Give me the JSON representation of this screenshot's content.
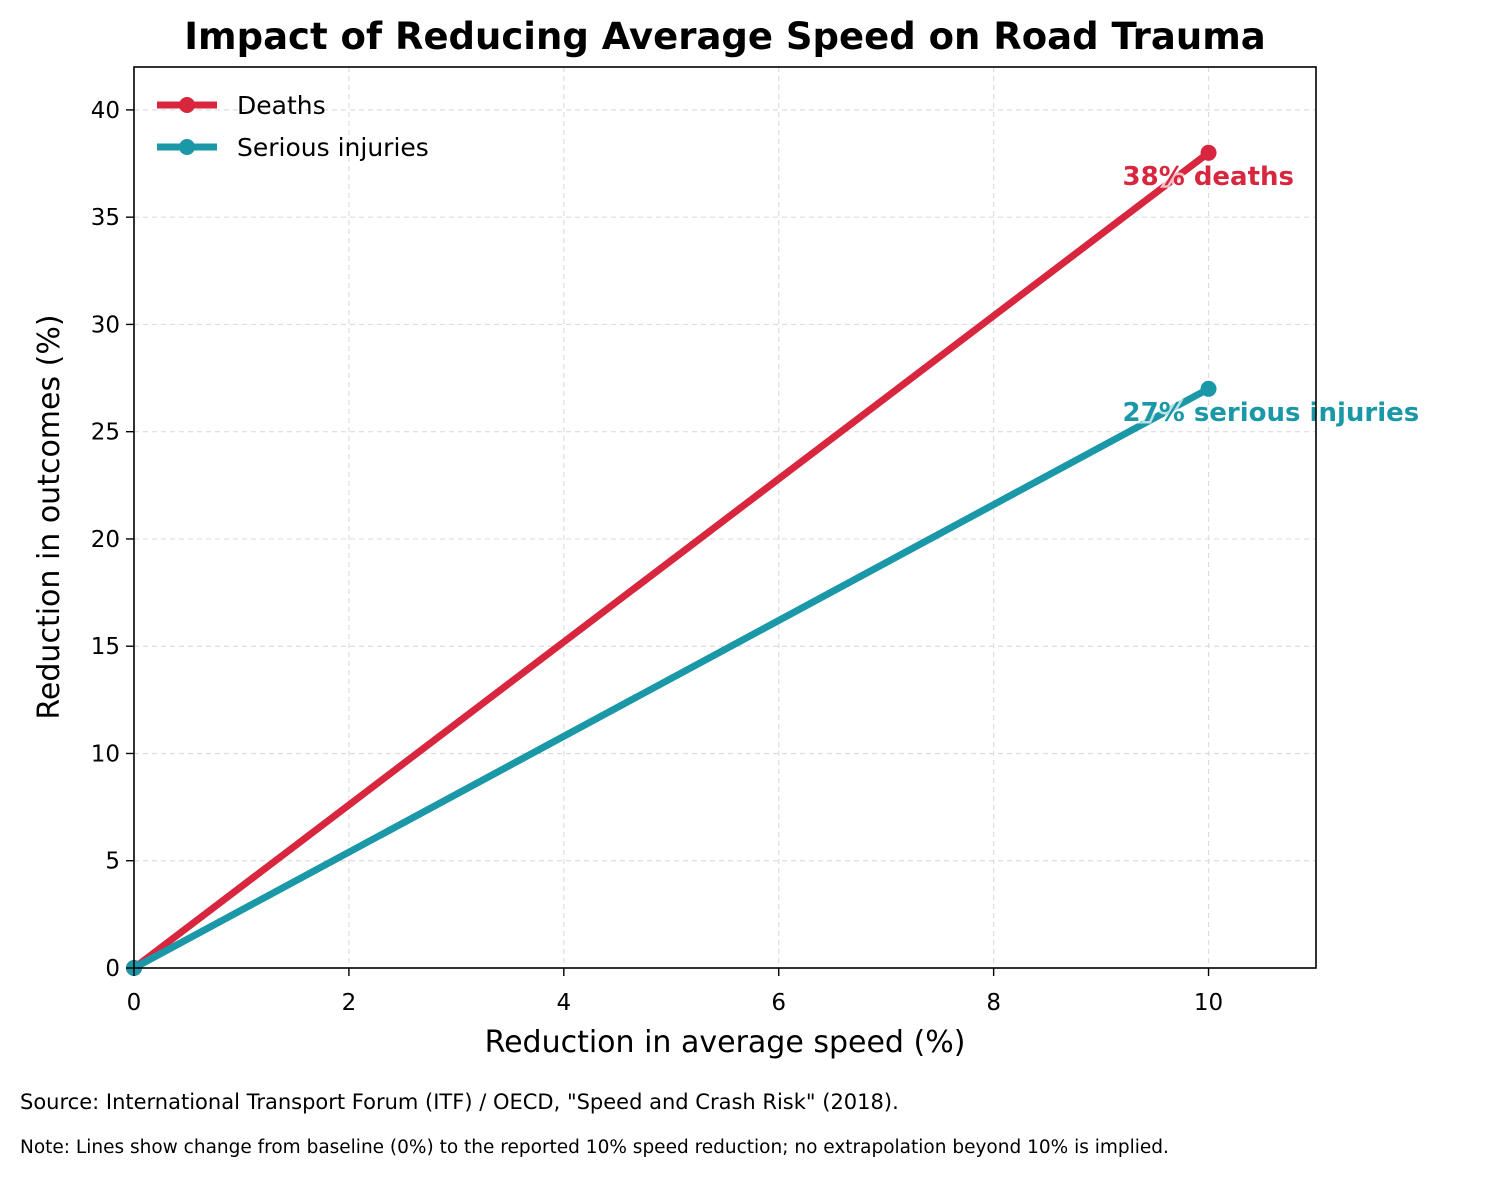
{
  "chart_data": {
    "type": "line",
    "title": "Impact of Reducing Average Speed on Road Trauma",
    "xlabel": "Reduction in average speed (%)",
    "ylabel": "Reduction in outcomes (%)",
    "xlim": [
      0,
      11
    ],
    "ylim": [
      0,
      42
    ],
    "xticks": [
      0,
      2,
      4,
      6,
      8,
      10
    ],
    "yticks": [
      0,
      5,
      10,
      15,
      20,
      25,
      30,
      35,
      40
    ],
    "grid": true,
    "legend_position": "top-left",
    "series": [
      {
        "name": "Deaths",
        "color": "#d7263d",
        "x": [
          0,
          10
        ],
        "y": [
          0,
          38
        ]
      },
      {
        "name": "Serious injuries",
        "color": "#1b98a8",
        "x": [
          0,
          10
        ],
        "y": [
          0,
          27
        ]
      }
    ],
    "annotations": [
      {
        "text": "38% deaths",
        "x": 10,
        "y": 38,
        "color": "#d7263d"
      },
      {
        "text": "27% serious injuries",
        "x": 10,
        "y": 27,
        "color": "#1b98a8"
      }
    ]
  },
  "footer": {
    "source": "Source: International Transport Forum (ITF) / OECD, \"Speed and Crash Risk\" (2018).",
    "note": "Note: Lines show change from baseline (0%) to the reported 10% speed reduction; no extrapolation beyond 10% is implied."
  }
}
